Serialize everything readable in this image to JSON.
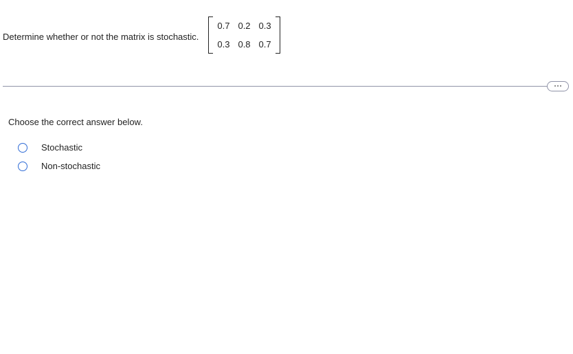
{
  "question": {
    "prompt": "Determine whether or not the matrix is stochastic.",
    "matrix": {
      "rows": [
        [
          "0.7",
          "0.2",
          "0.3"
        ],
        [
          "0.3",
          "0.8",
          "0.7"
        ]
      ],
      "bracket_color": "#222222"
    }
  },
  "instruction": "Choose the correct answer below.",
  "options": [
    {
      "label": "Stochastic"
    },
    {
      "label": "Non-stochastic"
    }
  ],
  "styles": {
    "hr_color": "#8f92a7",
    "radio_border_color": "#2f6bd6",
    "text_color": "#222222",
    "font_size_pt": 10
  }
}
